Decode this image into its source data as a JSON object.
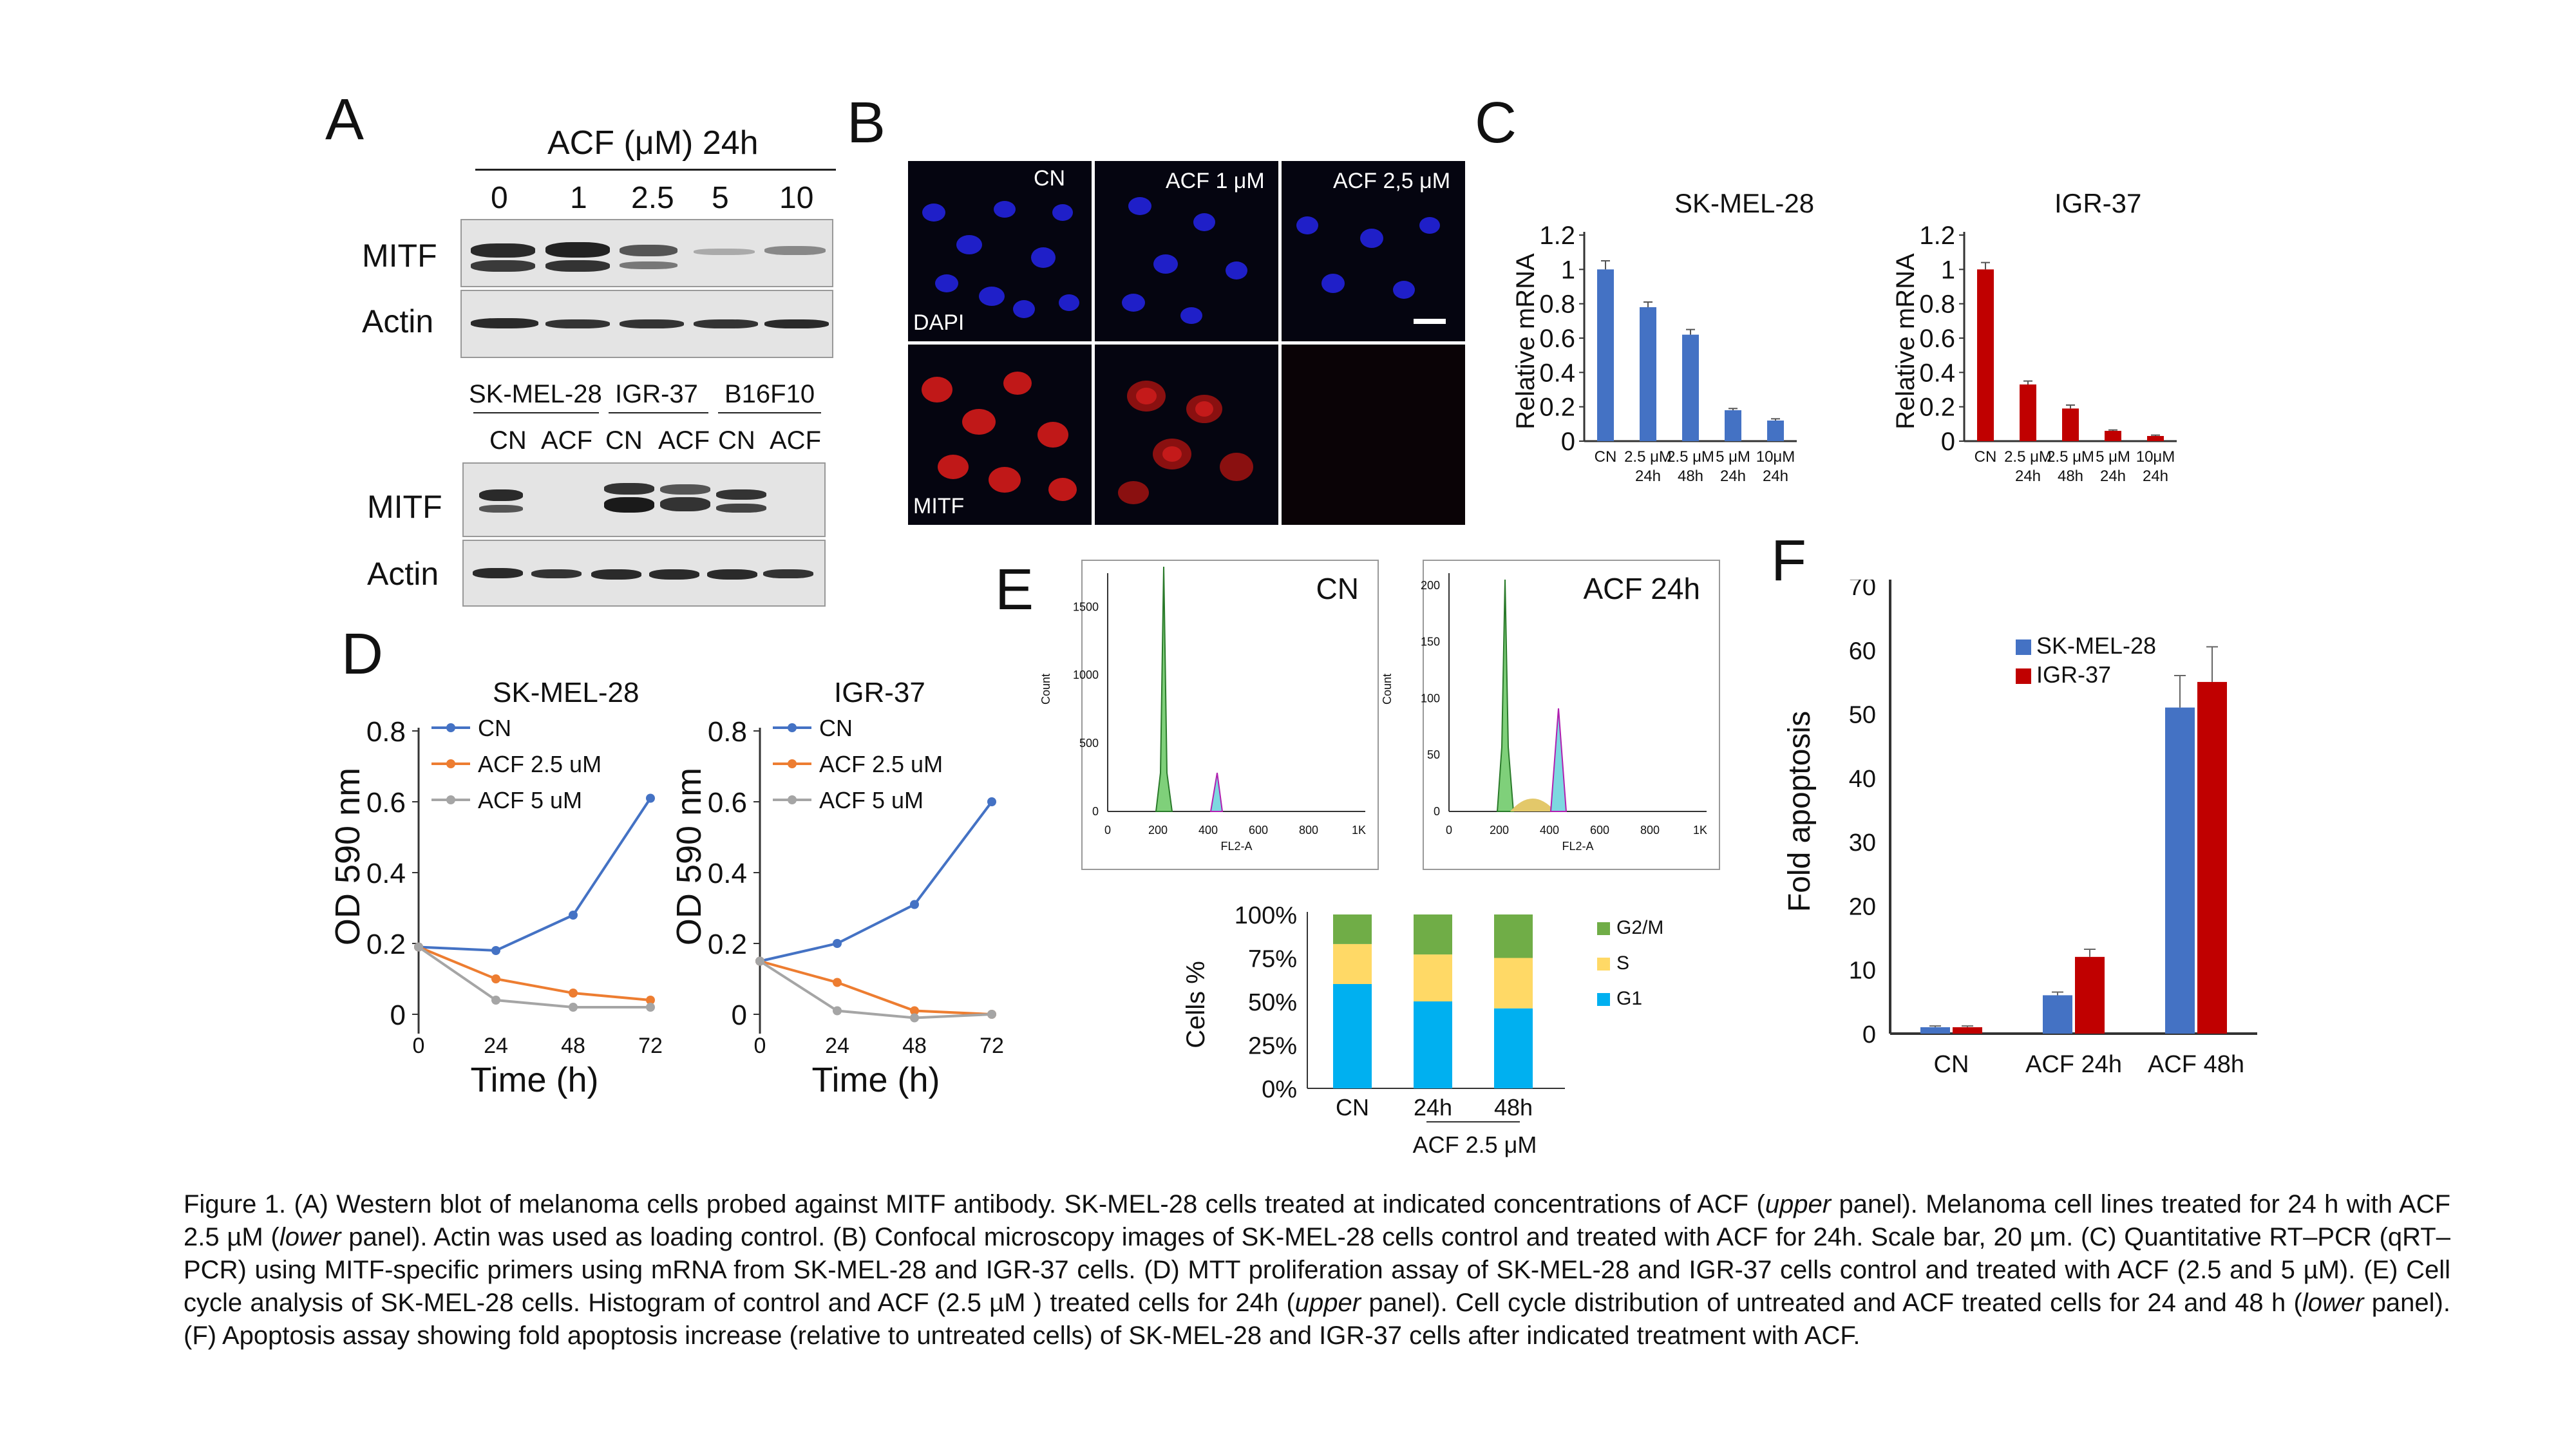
{
  "panels": {
    "A": {
      "label": "A",
      "top_title": "ACF (μM) 24h",
      "concentrations": [
        "0",
        "1",
        "2.5",
        "5",
        "10"
      ],
      "row_labels": [
        "MITF",
        "Actin"
      ],
      "cell_lines": [
        "SK-MEL-28",
        "IGR-37",
        "B16F10"
      ],
      "lane_labels": [
        "CN",
        "ACF",
        "CN",
        "ACF",
        "CN",
        "ACF"
      ],
      "row_labels_lower": [
        "MITF",
        "Actin"
      ]
    },
    "B": {
      "label": "B",
      "columns": [
        "CN",
        "ACF 1 μM",
        "ACF 2,5 μM"
      ],
      "row_labels": [
        "DAPI",
        "MITF"
      ]
    },
    "C": {
      "label": "C",
      "charts": [
        {
          "title": "SK-MEL-28",
          "ylabel": "Relative mRNA",
          "color": "#4472c4"
        },
        {
          "title": "IGR-37",
          "ylabel": "Relative mRNA",
          "color": "#c00000"
        }
      ]
    },
    "D": {
      "label": "D",
      "charts": [
        {
          "title": "SK-MEL-28",
          "ylabel": "OD 590 nm",
          "xlabel": "Time (h)"
        },
        {
          "title": "IGR-37",
          "ylabel": "OD 590 nm",
          "xlabel": "Time (h)"
        }
      ]
    },
    "E": {
      "label": "E",
      "hist": [
        {
          "title": "CN",
          "xlabel": "FL2-A",
          "ylabel": "Count"
        },
        {
          "title": "ACF 24h",
          "xlabel": "FL2-A",
          "ylabel": "Count"
        }
      ],
      "stacked": {
        "ylabel": "Cells %",
        "group_label": "ACF 2.5 μM"
      }
    },
    "F": {
      "label": "F",
      "ylabel": "Fold apoptosis"
    }
  },
  "chart_data": [
    {
      "panel": "C-left",
      "type": "bar",
      "title": "SK-MEL-28",
      "ylabel": "Relative mRNA",
      "categories": [
        [
          "CN"
        ],
        [
          "2.5 μM",
          "24h"
        ],
        [
          "2.5 μM",
          "48h"
        ],
        [
          "5 μM",
          "24h"
        ],
        [
          "10μM",
          "24h"
        ]
      ],
      "values": [
        1.0,
        0.78,
        0.62,
        0.18,
        0.12
      ],
      "errors": [
        0.05,
        0.03,
        0.03,
        0.01,
        0.01
      ],
      "ylim": [
        0,
        1.2
      ],
      "yticks": [
        "0",
        "0.2",
        "0.4",
        "0.6",
        "0.8",
        "1",
        "1.2"
      ],
      "color": "#4472c4"
    },
    {
      "panel": "C-right",
      "type": "bar",
      "title": "IGR-37",
      "ylabel": "Relative mRNA",
      "categories": [
        [
          "CN"
        ],
        [
          "2.5 μM",
          "24h"
        ],
        [
          "2.5 μM",
          "48h"
        ],
        [
          "5 μM",
          "24h"
        ],
        [
          "10μM",
          "24h"
        ]
      ],
      "values": [
        1.0,
        0.33,
        0.19,
        0.06,
        0.03
      ],
      "errors": [
        0.04,
        0.02,
        0.02,
        0.005,
        0.005
      ],
      "ylim": [
        0,
        1.2
      ],
      "yticks": [
        "0",
        "0.2",
        "0.4",
        "0.6",
        "0.8",
        "1",
        "1.2"
      ],
      "color": "#c00000"
    },
    {
      "panel": "D-left",
      "type": "line",
      "title": "SK-MEL-28",
      "ylabel": "OD 590 nm",
      "xlabel": "Time (h)",
      "x": [
        0,
        24,
        48,
        72
      ],
      "xticks": [
        "0",
        "24",
        "48",
        "72"
      ],
      "ylim": [
        0,
        0.8
      ],
      "yticks": [
        "0",
        "0.2",
        "0.4",
        "0.6",
        "0.8"
      ],
      "series": [
        {
          "name": "CN",
          "values": [
            0.19,
            0.18,
            0.28,
            0.61
          ],
          "color": "#4472c4"
        },
        {
          "name": "ACF 2.5 uM",
          "values": [
            0.19,
            0.1,
            0.06,
            0.04
          ],
          "color": "#ed7d31"
        },
        {
          "name": "ACF 5 uM",
          "values": [
            0.19,
            0.04,
            0.02,
            0.02
          ],
          "color": "#a5a5a5"
        }
      ]
    },
    {
      "panel": "D-right",
      "type": "line",
      "title": "IGR-37",
      "ylabel": "OD 590 nm",
      "xlabel": "Time (h)",
      "x": [
        0,
        24,
        48,
        72
      ],
      "xticks": [
        "0",
        "24",
        "48",
        "72"
      ],
      "ylim": [
        0,
        0.8
      ],
      "yticks": [
        "0",
        "0.2",
        "0.4",
        "0.6",
        "0.8"
      ],
      "series": [
        {
          "name": "CN",
          "values": [
            0.15,
            0.2,
            0.31,
            0.6
          ],
          "color": "#4472c4"
        },
        {
          "name": "ACF 2.5 uM",
          "values": [
            0.15,
            0.09,
            0.01,
            0.0
          ],
          "color": "#ed7d31"
        },
        {
          "name": "ACF 5 uM",
          "values": [
            0.15,
            0.01,
            -0.01,
            0.0
          ],
          "color": "#a5a5a5"
        }
      ]
    },
    {
      "panel": "E-stacked",
      "type": "bar",
      "stacked": true,
      "ylabel": "Cells %",
      "categories": [
        "CN",
        "24h",
        "48h"
      ],
      "yticks": [
        "0%",
        "25%",
        "50%",
        "75%",
        "100%"
      ],
      "ylim": [
        0,
        100
      ],
      "series": [
        {
          "name": "G1",
          "values": [
            60,
            50,
            46
          ],
          "color": "#00b0f0"
        },
        {
          "name": "S",
          "values": [
            23,
            27,
            29
          ],
          "color": "#ffd966"
        },
        {
          "name": "G2/M",
          "values": [
            17,
            23,
            25
          ],
          "color": "#70ad47"
        }
      ]
    },
    {
      "panel": "F",
      "type": "bar",
      "ylabel": "Fold apoptosis",
      "categories": [
        "CN",
        "ACF 24h",
        "ACF 48h"
      ],
      "ylim": [
        0,
        70
      ],
      "yticks": [
        "0",
        "10",
        "20",
        "30",
        "40",
        "50",
        "60",
        "70"
      ],
      "legend": "top-left",
      "series": [
        {
          "name": "SK-MEL-28",
          "values": [
            1,
            6,
            51
          ],
          "errors": [
            0.2,
            0.5,
            5
          ],
          "color": "#4472c4"
        },
        {
          "name": "IGR-37",
          "values": [
            1,
            12,
            55
          ],
          "errors": [
            0.2,
            1.2,
            5.5
          ],
          "color": "#c00000"
        }
      ]
    },
    {
      "panel": "E-hist",
      "type": "area",
      "xticks": [
        "0",
        "200",
        "400",
        "600",
        "800",
        "1K"
      ],
      "charts": [
        {
          "title": "CN",
          "yticks": [
            "0",
            "500",
            "1000",
            "1500"
          ]
        },
        {
          "title": "ACF 24h",
          "yticks": [
            "0",
            "50",
            "100",
            "150",
            "200"
          ]
        }
      ]
    }
  ],
  "caption": {
    "p1": "Figure 1. (A) Western blot of melanoma cells probed against MITF antibody. SK-MEL-28 cells treated at indicated concentrations of ACF (",
    "i1": "upper",
    "p2": " panel). Melanoma cell lines treated for 24 h with ACF 2.5 µM (",
    "i2": "lower",
    "p3": " panel). Actin was used as loading control. (B) Confocal microscopy images of SK-MEL-28 cells control and treated with ACF for 24h. Scale bar, 20 µm. (C) Quantitative RT–PCR (qRT–PCR) using MITF-specific primers using mRNA from SK-MEL-28 and IGR-37 cells. (D) MTT proliferation assay of SK-MEL-28 and IGR-37 cells control and treated with ACF (2.5 and 5 µM). (E) Cell cycle analysis of SK-MEL-28 cells. Histogram of control and ACF (2.5 µM ) treated cells for 24h (",
    "i3": "upper",
    "p4": " panel). Cell cycle distribution of untreated and ACF treated cells for 24 and 48 h (",
    "i4": "lower",
    "p5": " panel). (F) Apoptosis assay showing fold apoptosis increase (relative to untreated cells) of SK-MEL-28 and IGR-37 cells after indicated treatment with ACF."
  }
}
